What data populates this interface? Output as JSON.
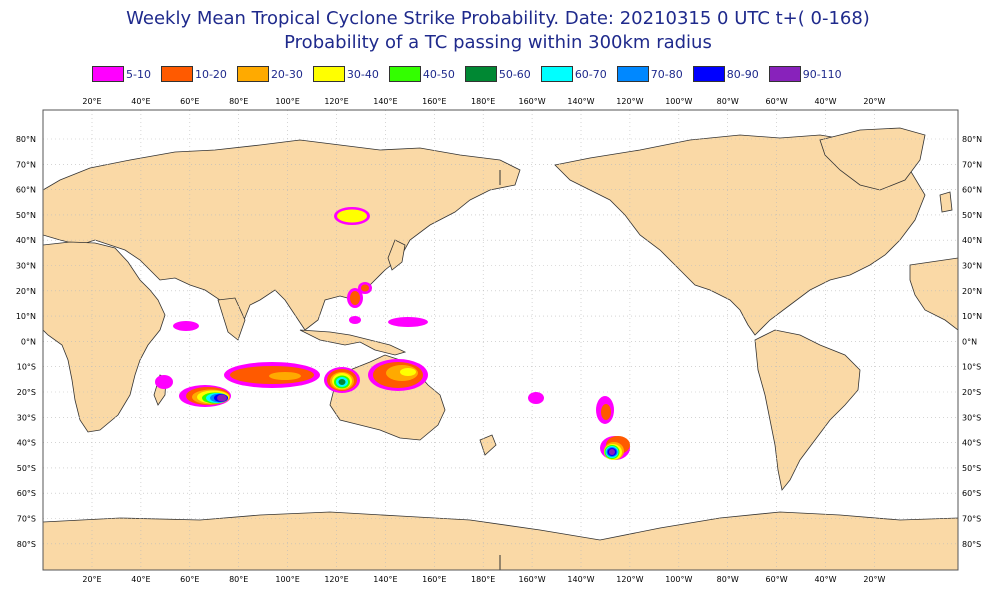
{
  "title_line1": "Weekly Mean Tropical Cyclone Strike Probability. Date: 20210315  0 UTC    t+(  0-168)",
  "title_line2": "Probability of a TC passing within  300km radius",
  "legend": [
    {
      "label": "5-10",
      "color": "#ff00ff"
    },
    {
      "label": "10-20",
      "color": "#ff5a00"
    },
    {
      "label": "20-30",
      "color": "#ffaa00"
    },
    {
      "label": "30-40",
      "color": "#ffff00"
    },
    {
      "label": "40-50",
      "color": "#33ff00"
    },
    {
      "label": "50-60",
      "color": "#008833"
    },
    {
      "label": "60-70",
      "color": "#00ffff"
    },
    {
      "label": "70-80",
      "color": "#0088ff"
    },
    {
      "label": "80-90",
      "color": "#0000ff"
    },
    {
      "label": "90-110",
      "color": "#8822bb"
    }
  ],
  "lon_labels": [
    "20°E",
    "40°E",
    "60°E",
    "80°E",
    "100°E",
    "120°E",
    "140°E",
    "160°E",
    "180°E",
    "160°W",
    "140°W",
    "120°W",
    "100°W",
    "80°W",
    "60°W",
    "40°W",
    "20°W"
  ],
  "lat_labels": [
    "80°N",
    "70°N",
    "60°N",
    "50°N",
    "40°N",
    "30°N",
    "20°N",
    "10°N",
    "0°N",
    "10°S",
    "20°S",
    "30°S",
    "40°S",
    "50°S",
    "60°S",
    "70°S",
    "80°S"
  ],
  "colors": {
    "land": "#fad9a6",
    "coast": "#333333",
    "ocean": "#ffffff",
    "grid": "#bbbbbb",
    "title": "#1f2a8c"
  }
}
